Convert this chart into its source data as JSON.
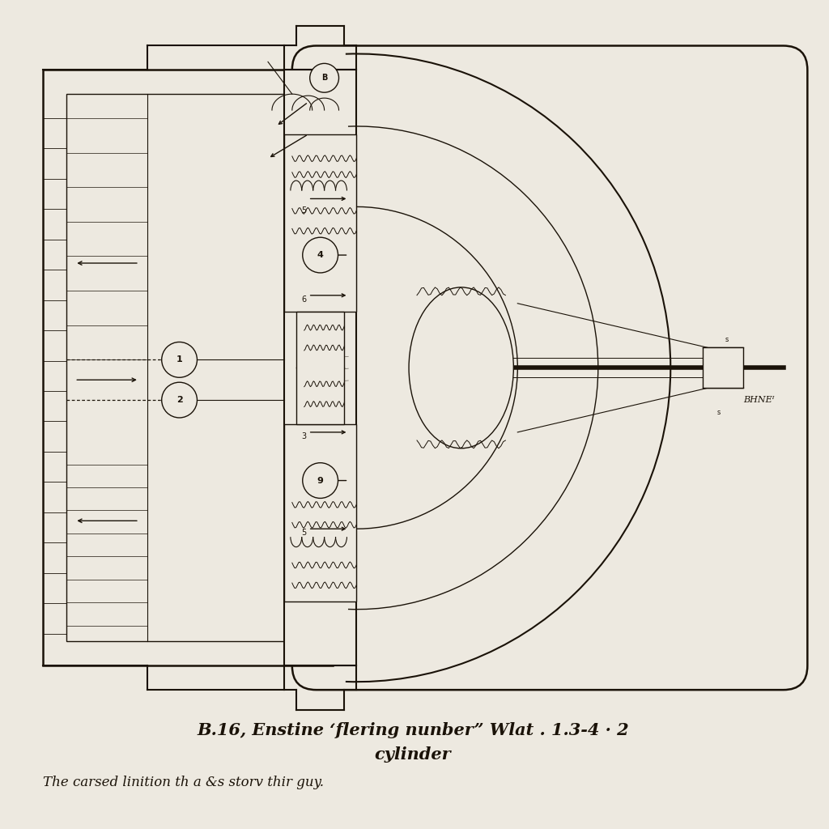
{
  "background_color": "#ede9e0",
  "line_color": "#1a1208",
  "title_line1": "B.16, Enstine ‘flering nunber” Wlat . 1.3-4 · 2",
  "title_line2": "cylinder",
  "subtitle": "The carsed linition th a &s storv thir guy.",
  "title_fontsize": 15,
  "subtitle_fontsize": 12,
  "label_BHNE": "BHNEᴵ"
}
